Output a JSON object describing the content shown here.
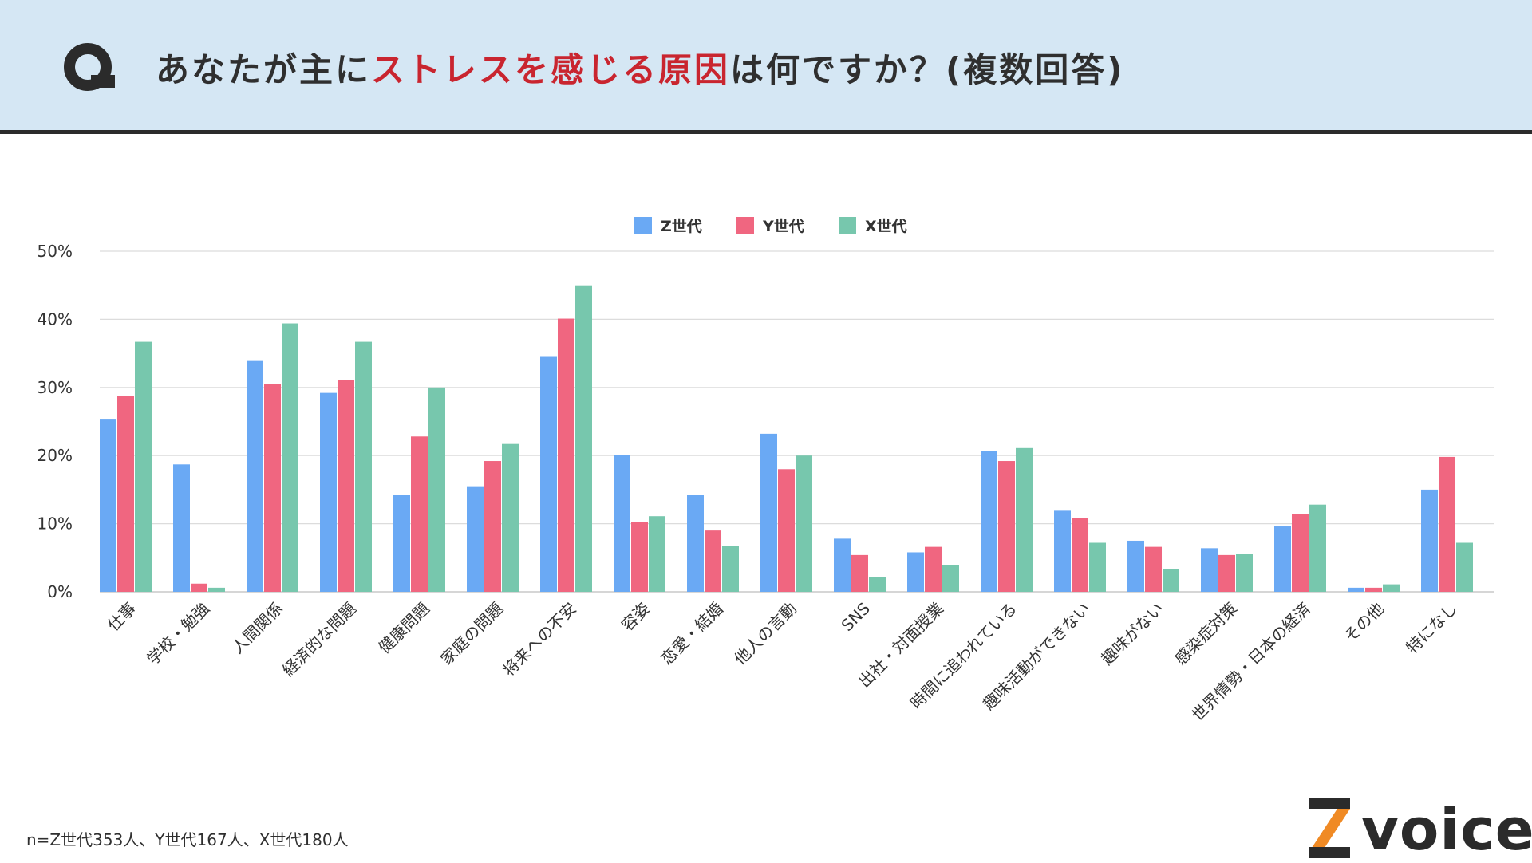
{
  "header": {
    "q_label": "Q",
    "title_before": "あなたが主に",
    "title_highlight": "ストレスを感じる原因",
    "title_after": "は何ですか？(複数回答)",
    "highlight_color": "#c9252f"
  },
  "chart_data": {
    "type": "bar",
    "title": "あなたが主にストレスを感じる原因は何ですか？(複数回答)",
    "xlabel": "",
    "ylabel": "",
    "ylim": [
      0,
      50
    ],
    "yticks": [
      0,
      10,
      20,
      30,
      40,
      50
    ],
    "ytick_suffix": "%",
    "grid": true,
    "legend_position": "top-center",
    "categories": [
      "仕事",
      "学校・勉強",
      "人間関係",
      "経済的な問題",
      "健康問題",
      "家庭の問題",
      "将来への不安",
      "容姿",
      "恋愛・結婚",
      "他人の言動",
      "SNS",
      "出社・対面授業",
      "時間に追われている",
      "趣味活動ができない",
      "趣味がない",
      "感染症対策",
      "世界情勢・日本の経済",
      "その他",
      "特になし"
    ],
    "series": [
      {
        "name": "Z世代",
        "color": "#6aa9f4",
        "values": [
          25.4,
          18.7,
          34.0,
          29.2,
          14.2,
          15.5,
          34.6,
          20.1,
          14.2,
          23.2,
          7.8,
          5.8,
          20.7,
          11.9,
          7.5,
          6.4,
          9.6,
          0.6,
          15.0
        ]
      },
      {
        "name": "Y世代",
        "color": "#f06680",
        "values": [
          28.7,
          1.2,
          30.5,
          31.1,
          22.8,
          19.2,
          40.1,
          10.2,
          9.0,
          18.0,
          5.4,
          6.6,
          19.2,
          10.8,
          6.6,
          5.4,
          11.4,
          0.6,
          19.8
        ]
      },
      {
        "name": "X世代",
        "color": "#77c7ad",
        "values": [
          36.7,
          0.6,
          39.4,
          36.7,
          30.0,
          21.7,
          45.0,
          11.1,
          6.7,
          20.0,
          2.2,
          3.9,
          21.1,
          7.2,
          3.3,
          5.6,
          12.8,
          1.1,
          7.2
        ]
      }
    ]
  },
  "footnote": "n=Z世代353人、Y世代167人、X世代180人",
  "logo": {
    "text": "voice",
    "mark_letter": "Z",
    "mark_color_dark": "#2b2b2b",
    "mark_color_accent": "#f08a24"
  }
}
